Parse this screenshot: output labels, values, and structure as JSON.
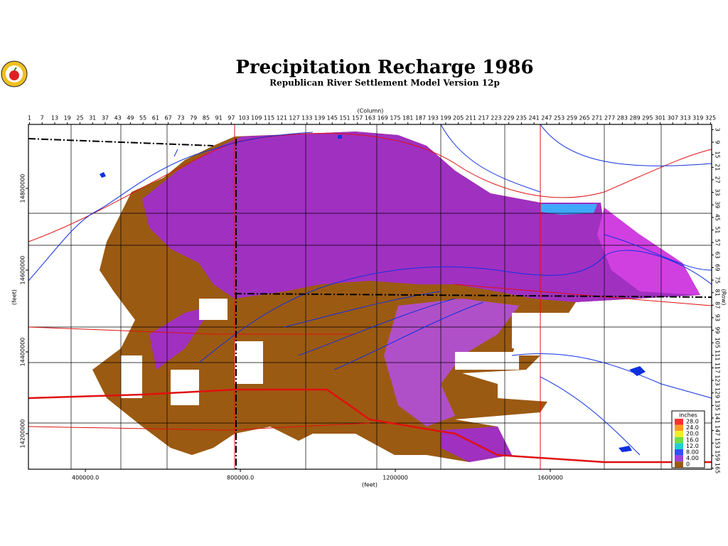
{
  "map": {
    "title": "Precipitation Recharge 1986",
    "subtitle": "Republican River Settlement Model Version 12p",
    "column_label": "(Column)",
    "row_label": "(Row)",
    "x_label": "(feet)",
    "y_label": "(feet)",
    "column_lim": [
      0.5,
      325.5
    ],
    "columns": [
      1,
      7,
      13,
      19,
      25,
      31,
      37,
      43,
      49,
      55,
      61,
      67,
      73,
      79,
      85,
      91,
      97,
      103,
      109,
      115,
      121,
      127,
      133,
      139,
      145,
      151,
      157,
      163,
      169,
      175,
      181,
      187,
      193,
      199,
      205,
      211,
      217,
      223,
      229,
      235,
      241,
      247,
      253,
      259,
      265,
      271,
      277,
      283,
      289,
      295,
      301,
      307,
      313,
      319,
      325
    ],
    "row_lim": [
      0.5,
      165.5
    ],
    "rows": [
      3,
      9,
      15,
      21,
      27,
      33,
      39,
      45,
      51,
      57,
      63,
      69,
      75,
      81,
      87,
      93,
      99,
      105,
      111,
      117,
      123,
      129,
      135,
      141,
      147,
      153,
      159,
      165
    ],
    "xlim": [
      253000,
      2016500
    ],
    "xticks": [
      {
        "value": 400000,
        "label": "400000.0"
      },
      {
        "value": 800000,
        "label": "800000.0"
      },
      1200000,
      1600000
    ],
    "ylim": [
      14113000,
      14956500
    ],
    "yticks": [
      14800000,
      14600000,
      14400000,
      14200000
    ],
    "legend": {
      "title": "inches",
      "entries": [
        {
          "value": 28,
          "label": "28.0",
          "color": "#ff3030"
        },
        {
          "value": 24,
          "label": "24.0",
          "color": "#ff9a20"
        },
        {
          "value": 20,
          "label": "20.0",
          "color": "#f0f020"
        },
        {
          "value": 16,
          "label": "16.0",
          "color": "#70e040"
        },
        {
          "value": 12,
          "label": "12.0",
          "color": "#20d0d0"
        },
        {
          "value": 8,
          "label": "8.00",
          "color": "#3050ff"
        },
        {
          "value": 4,
          "label": "4.00",
          "color": "#a040e0"
        },
        {
          "value": 0,
          "label": "0",
          "color": "#9b5a12"
        }
      ]
    }
  }
}
